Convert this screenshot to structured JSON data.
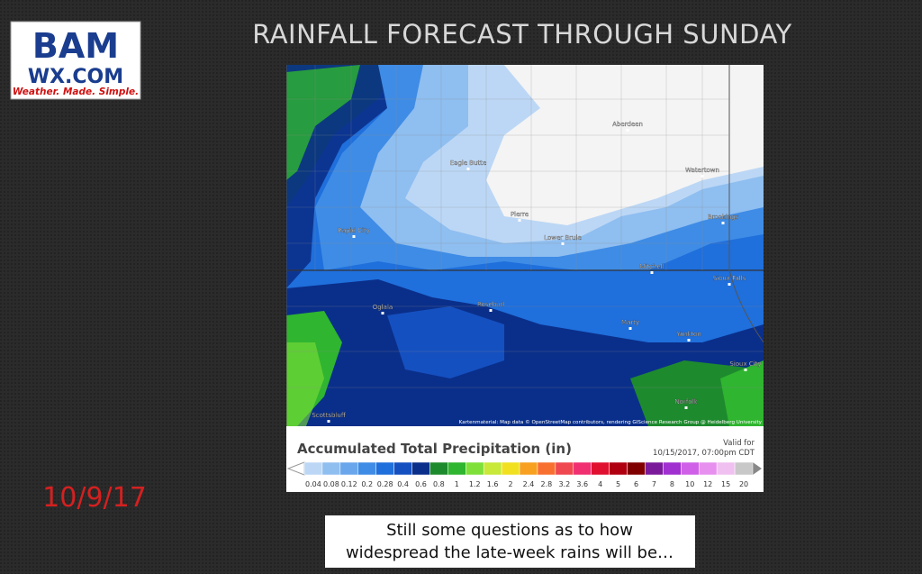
{
  "logo": {
    "name": "BAM",
    "site": "WX.COM",
    "tagline": "Weather. Made. Simple."
  },
  "title": "RAINFALL FORECAST THROUGH SUNDAY",
  "date": "10/9/17",
  "map": {
    "cities": [
      "Aberdeen",
      "Eagle Butte",
      "Watertown",
      "Pierre",
      "Brookings",
      "Rapid City",
      "Lower Brule",
      "Mitchell",
      "Sioux Falls",
      "Oglala",
      "Rosebud",
      "Marty",
      "Yankton",
      "Sioux City",
      "Norfolk",
      "Scottsbluff"
    ],
    "attribution": "Kartenmaterial: Map data © OpenStreetMap contributors, rendering GIScience Research Group @ Heidelberg University"
  },
  "legend": {
    "title": "Accumulated Total Precipitation (in)",
    "valid_label": "Valid for",
    "valid_time": "10/15/2017, 07:00pm CDT",
    "scale": [
      {
        "label": "0.04",
        "color": "#bcd7f5"
      },
      {
        "label": "0.08",
        "color": "#8fbef0"
      },
      {
        "label": "0.12",
        "color": "#6aa6ec"
      },
      {
        "label": "0.2",
        "color": "#3f8ce6"
      },
      {
        "label": "0.28",
        "color": "#1f6fdc"
      },
      {
        "label": "0.4",
        "color": "#1550c0"
      },
      {
        "label": "0.6",
        "color": "#0a2f8a"
      },
      {
        "label": "0.8",
        "color": "#1e8a2e"
      },
      {
        "label": "1",
        "color": "#2fb52f"
      },
      {
        "label": "1.2",
        "color": "#7fe03a"
      },
      {
        "label": "1.6",
        "color": "#c8e83a"
      },
      {
        "label": "2",
        "color": "#f0e020"
      },
      {
        "label": "2.4",
        "color": "#f8a020"
      },
      {
        "label": "2.8",
        "color": "#f87030"
      },
      {
        "label": "3.2",
        "color": "#f04850"
      },
      {
        "label": "3.6",
        "color": "#f03070"
      },
      {
        "label": "4",
        "color": "#e01030"
      },
      {
        "label": "5",
        "color": "#b00010"
      },
      {
        "label": "6",
        "color": "#800000"
      },
      {
        "label": "7",
        "color": "#7a1a9a"
      },
      {
        "label": "8",
        "color": "#a030d0"
      },
      {
        "label": "10",
        "color": "#d060e8"
      },
      {
        "label": "12",
        "color": "#e890f0"
      },
      {
        "label": "15",
        "color": "#f0c0f0"
      },
      {
        "label": "20",
        "color": "#c8c8c8"
      }
    ]
  },
  "caption": [
    "Still some questions as to how",
    "widespread the late-week rains will be…"
  ]
}
